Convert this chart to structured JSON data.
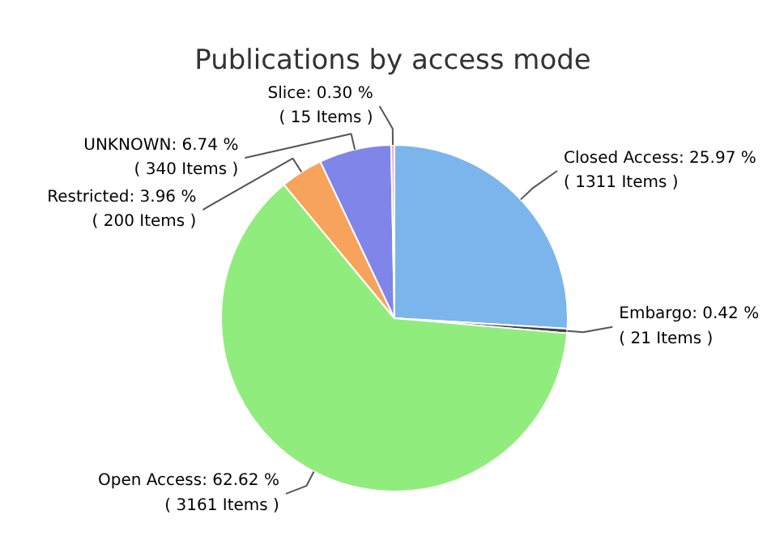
{
  "chart_data": {
    "type": "pie",
    "title": "Publications by access mode",
    "categories": [
      "Closed Access",
      "Embargo",
      "Open Access",
      "Restricted",
      "UNKNOWN",
      "Slice"
    ],
    "values": [
      1311,
      21,
      3161,
      200,
      340,
      15
    ],
    "value_labels": [
      "25.97 %\n( 1311 Items )",
      "0.42 %\n( 21 Items )",
      "62.62 %\n( 3161 Items )",
      "3.96 %\n( 200 Items )",
      "6.74 %\n( 340 Items )",
      "0.30 %\n( 15 Items )"
    ],
    "colors": [
      "#7cb5ec",
      "#434348",
      "#90ed7d",
      "#f7a35c",
      "#8085e9",
      "#f7a1c4"
    ]
  }
}
